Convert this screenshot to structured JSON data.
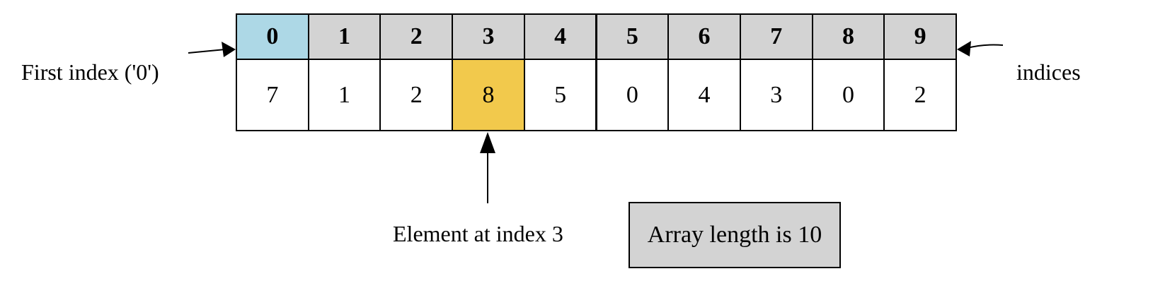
{
  "array": {
    "indices": [
      "0",
      "1",
      "2",
      "3",
      "4",
      "5",
      "6",
      "7",
      "8",
      "9"
    ],
    "values": [
      "7",
      "1",
      "2",
      "8",
      "5",
      "0",
      "4",
      "3",
      "0",
      "2"
    ],
    "highlighted_index": 3,
    "first_index_position": 0
  },
  "labels": {
    "first_index": "First index ('0')",
    "indices": "indices",
    "element_at_index": "Element at index 3",
    "array_length": "Array length is 10"
  },
  "colors": {
    "index_background": "#d3d3d3",
    "first_index_background": "#add8e6",
    "highlight_background": "#f2c94c",
    "value_background": "#ffffff",
    "length_box_background": "#d3d3d3"
  }
}
